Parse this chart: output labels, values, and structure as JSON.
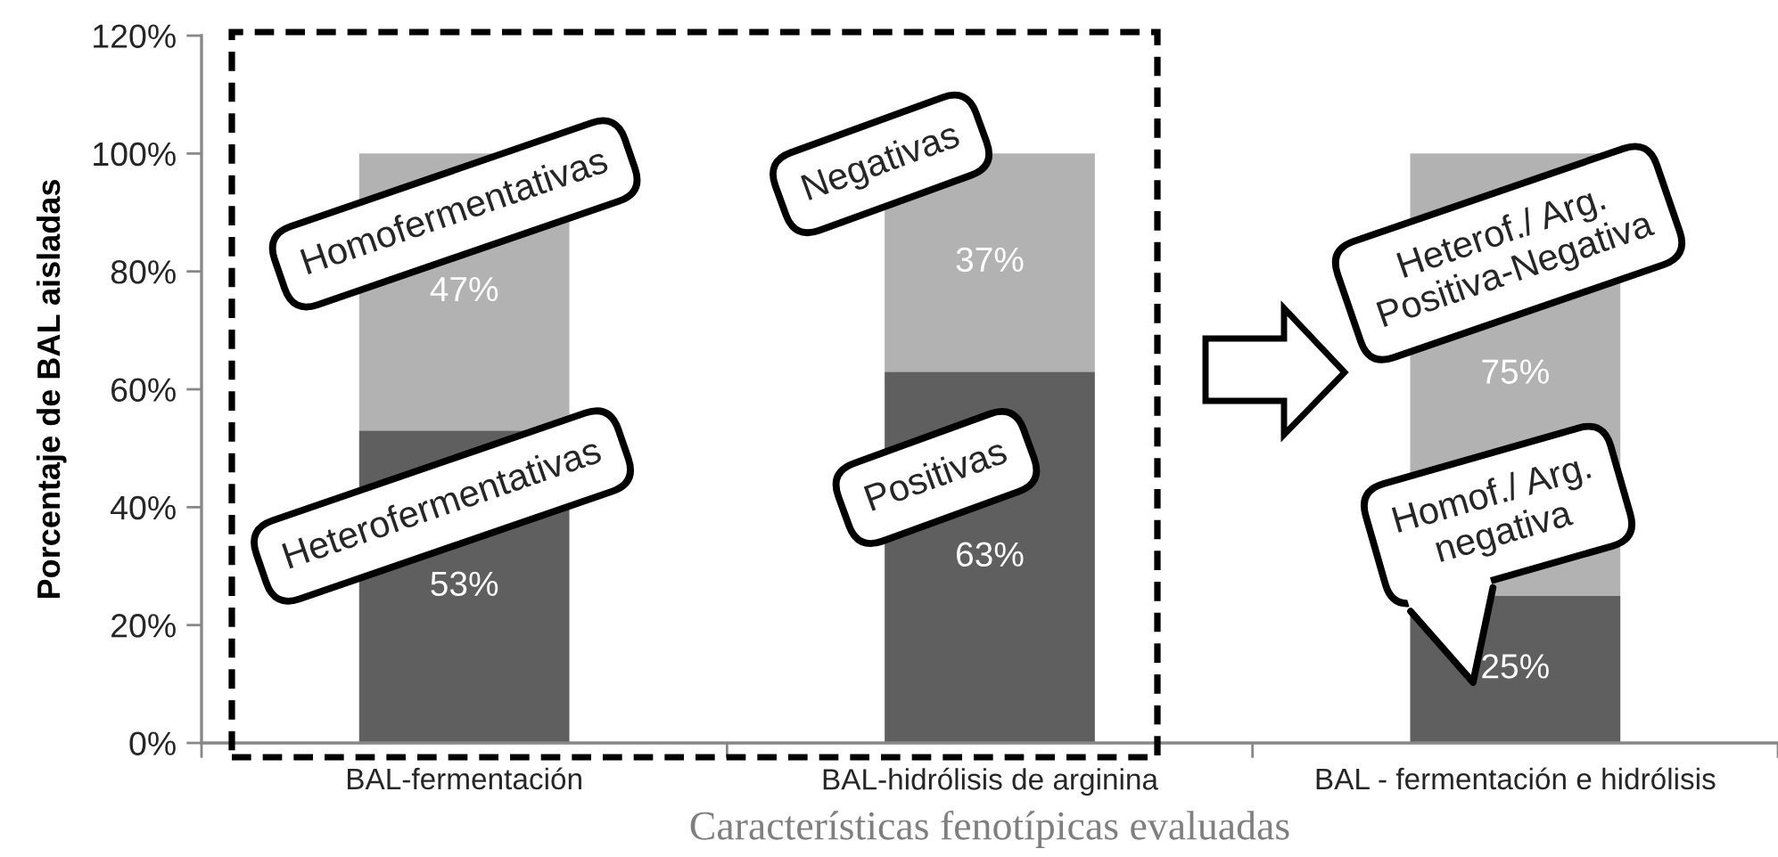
{
  "chart_data": {
    "type": "bar",
    "stacked": true,
    "xlabel": "Características fenotípicas evaluadas",
    "ylabel": "Porcentaje de BAL aisladas",
    "categories": [
      "BAL-fermentación",
      "BAL-hidrólisis de arginina",
      "BAL - fermentación e hidrólisis"
    ],
    "series": [
      {
        "color": "#5f5f5f",
        "values": [
          53,
          63,
          25
        ],
        "value_labels": [
          "53%",
          "63%",
          "25%"
        ]
      },
      {
        "color": "#b2b2b2",
        "values": [
          47,
          37,
          75
        ],
        "value_labels": [
          "47%",
          "37%",
          "75%"
        ]
      }
    ],
    "ylim": [
      0,
      120
    ],
    "yticks": [
      {
        "value": 0,
        "label": "0%"
      },
      {
        "value": 20,
        "label": "20%"
      },
      {
        "value": 40,
        "label": "40%"
      },
      {
        "value": 60,
        "label": "60%"
      },
      {
        "value": 80,
        "label": "80%"
      },
      {
        "value": 100,
        "label": "100%"
      },
      {
        "value": 120,
        "label": "120%"
      }
    ],
    "annotations": [
      "Homofermentativas",
      "Heterofermentativas",
      "Negativas",
      "Positivas",
      "Heterof./ Arg.\nPositiva-Negativa",
      "Homof./ Arg.\nnegativa"
    ]
  }
}
